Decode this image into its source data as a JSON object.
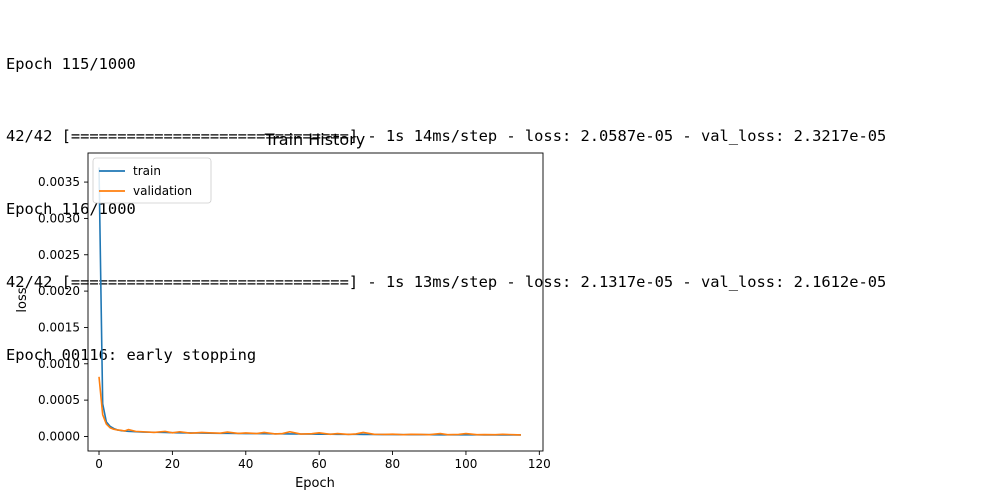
{
  "console": {
    "lines": [
      "Epoch 115/1000",
      "42/42 [==============================] - 1s 14ms/step - loss: 2.0587e-05 - val_loss: 2.3217e-05",
      "Epoch 116/1000",
      "42/42 [==============================] - 1s 13ms/step - loss: 2.1317e-05 - val_loss: 2.1612e-05",
      "Epoch 00116: early stopping"
    ]
  },
  "chart_data": {
    "type": "line",
    "title": "Train History",
    "xlabel": "Epoch",
    "ylabel": "loss",
    "xlim": [
      -3,
      121
    ],
    "ylim": [
      -0.0002,
      0.0039
    ],
    "xticks": [
      0,
      20,
      40,
      60,
      80,
      100,
      120
    ],
    "xtick_labels": [
      "0",
      "20",
      "40",
      "60",
      "80",
      "100",
      "120"
    ],
    "yticks": [
      0.0,
      0.0005,
      0.001,
      0.0015,
      0.002,
      0.0025,
      0.003,
      0.0035
    ],
    "ytick_labels": [
      "0.0000",
      "0.0005",
      "0.0010",
      "0.0015",
      "0.0020",
      "0.0025",
      "0.0030",
      "0.0035"
    ],
    "grid": false,
    "legend_loc": "upper-left",
    "series": [
      {
        "name": "train",
        "color": "#1f77b4",
        "x": [
          0,
          1,
          2,
          3,
          4,
          5,
          6,
          7,
          8,
          10,
          12,
          15,
          18,
          20,
          22,
          25,
          28,
          30,
          33,
          35,
          38,
          40,
          43,
          45,
          48,
          50,
          52,
          55,
          58,
          60,
          63,
          65,
          68,
          70,
          72,
          75,
          78,
          80,
          83,
          85,
          88,
          90,
          93,
          95,
          98,
          100,
          103,
          105,
          108,
          110,
          113,
          115
        ],
        "y": [
          0.0037,
          0.00045,
          0.0002,
          0.00014,
          0.00011,
          9e-05,
          8e-05,
          7.5e-05,
          7e-05,
          6.5e-05,
          6e-05,
          5.8e-05,
          5.5e-05,
          5.2e-05,
          5e-05,
          4.8e-05,
          4.6e-05,
          4.5e-05,
          4.4e-05,
          4.3e-05,
          4.2e-05,
          4e-05,
          3.9e-05,
          3.8e-05,
          3.7e-05,
          3.6e-05,
          3.5e-05,
          3.4e-05,
          3.3e-05,
          3.2e-05,
          3.1e-05,
          3e-05,
          2.9e-05,
          2.9e-05,
          2.8e-05,
          2.7e-05,
          2.6e-05,
          2.6e-05,
          2.5e-05,
          2.5e-05,
          2.4e-05,
          2.4e-05,
          2.3e-05,
          2.3e-05,
          2.2e-05,
          2.2e-05,
          2.2e-05,
          2.1e-05,
          2.1e-05,
          2.1e-05,
          2.1e-05,
          2.13e-05
        ]
      },
      {
        "name": "validation",
        "color": "#ff7f0e",
        "x": [
          0,
          1,
          2,
          3,
          4,
          5,
          6,
          7,
          8,
          10,
          12,
          15,
          18,
          20,
          22,
          25,
          28,
          30,
          33,
          35,
          38,
          40,
          43,
          45,
          48,
          50,
          52,
          55,
          58,
          60,
          63,
          65,
          68,
          70,
          72,
          75,
          78,
          80,
          83,
          85,
          88,
          90,
          93,
          95,
          98,
          100,
          103,
          105,
          108,
          110,
          113,
          115
        ],
        "y": [
          0.00082,
          0.0003,
          0.00017,
          0.00012,
          0.0001,
          9e-05,
          8.5e-05,
          7.5e-05,
          9.5e-05,
          7e-05,
          6.5e-05,
          5.5e-05,
          7e-05,
          5e-05,
          6.5e-05,
          4.5e-05,
          5.5e-05,
          5e-05,
          4.5e-05,
          6e-05,
          4.2e-05,
          4.8e-05,
          4e-05,
          5.5e-05,
          3.5e-05,
          4e-05,
          6.5e-05,
          3.3e-05,
          3.8e-05,
          5e-05,
          3e-05,
          4e-05,
          2.8e-05,
          3.5e-05,
          5.5e-05,
          3e-05,
          2.8e-05,
          3.2e-05,
          2.5e-05,
          3e-05,
          2.8e-05,
          2.5e-05,
          4e-05,
          2.5e-05,
          2.8e-05,
          4e-05,
          2.4e-05,
          2.6e-05,
          2.5e-05,
          3e-05,
          2.4e-05,
          2.16e-05
        ]
      }
    ]
  }
}
